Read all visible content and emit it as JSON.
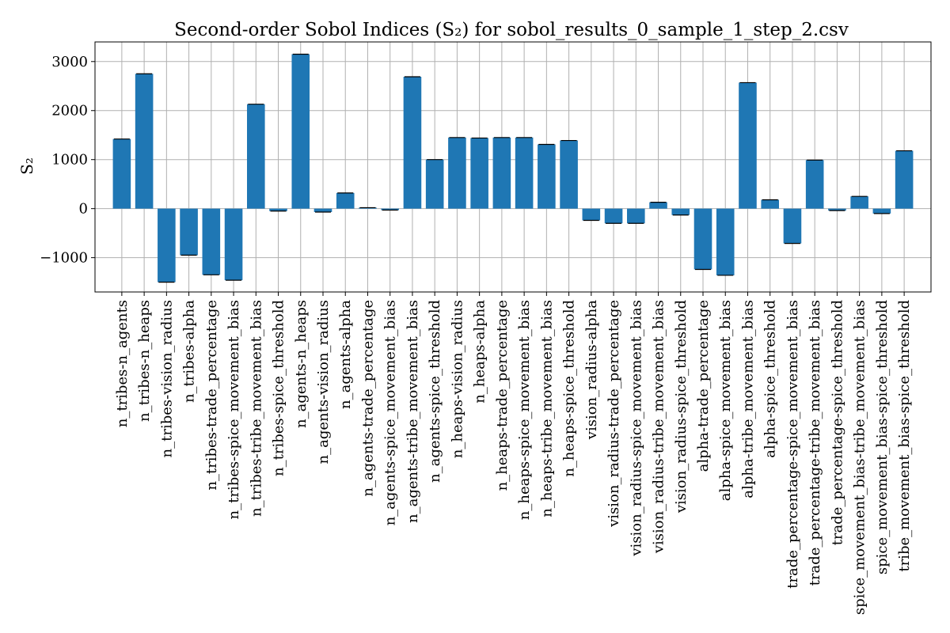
{
  "chart_data": {
    "type": "bar",
    "title": "Second-order Sobol Indices (S₂) for sobol_results_0_sample_1_step_2.csv",
    "xlabel": "",
    "ylabel": "S₂",
    "ylim": [
      -1700,
      3400
    ],
    "yticks": [
      -1000,
      0,
      1000,
      2000,
      3000
    ],
    "ytick_labels": [
      "−1000",
      "0",
      "1000",
      "2000",
      "3000"
    ],
    "grid": true,
    "bar_color": "#1f77b4",
    "error_bar_color": "#000000",
    "categories": [
      "n_tribes-n_agents",
      "n_tribes-n_heaps",
      "n_tribes-vision_radius",
      "n_tribes-alpha",
      "n_tribes-trade_percentage",
      "n_tribes-spice_movement_bias",
      "n_tribes-tribe_movement_bias",
      "n_tribes-spice_threshold",
      "n_agents-n_heaps",
      "n_agents-vision_radius",
      "n_agents-alpha",
      "n_agents-trade_percentage",
      "n_agents-spice_movement_bias",
      "n_agents-tribe_movement_bias",
      "n_agents-spice_threshold",
      "n_heaps-vision_radius",
      "n_heaps-alpha",
      "n_heaps-trade_percentage",
      "n_heaps-spice_movement_bias",
      "n_heaps-tribe_movement_bias",
      "n_heaps-spice_threshold",
      "vision_radius-alpha",
      "vision_radius-trade_percentage",
      "vision_radius-spice_movement_bias",
      "vision_radius-tribe_movement_bias",
      "vision_radius-spice_threshold",
      "alpha-trade_percentage",
      "alpha-spice_movement_bias",
      "alpha-tribe_movement_bias",
      "alpha-spice_threshold",
      "trade_percentage-spice_movement_bias",
      "trade_percentage-tribe_movement_bias",
      "trade_percentage-spice_threshold",
      "spice_movement_bias-tribe_movement_bias",
      "spice_movement_bias-spice_threshold",
      "tribe_movement_bias-spice_threshold"
    ],
    "values": [
      1420,
      2750,
      -1500,
      -950,
      -1350,
      -1460,
      2130,
      -50,
      3150,
      -70,
      320,
      20,
      -30,
      2690,
      1000,
      1450,
      1440,
      1450,
      1450,
      1310,
      1390,
      -240,
      -300,
      -300,
      130,
      -130,
      -1240,
      -1360,
      2570,
      180,
      -710,
      990,
      -40,
      250,
      -100,
      1180
    ]
  }
}
